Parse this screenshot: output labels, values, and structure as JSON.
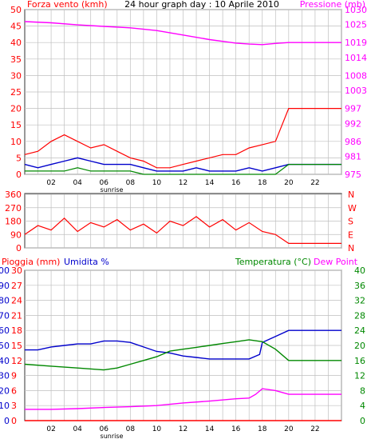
{
  "colors": {
    "wind_axis": "#ff0000",
    "pressure": "#ff00ff",
    "wind_gust": "#ff0000",
    "wind_avg": "#0000cc",
    "wind_min": "#008800",
    "humidity": "#0000cc",
    "rain": "#ff0000",
    "temperature": "#008800",
    "dewpoint": "#ff00ff",
    "grid": "#bfbfbf"
  },
  "chart_data": [
    {
      "type": "line",
      "title": "24 hour graph day : 10 Aprile 2010",
      "ylabel": "Forza vento (kmh)",
      "y2label": "Pressione (mb)",
      "x_ticks": [
        "02",
        "04",
        "06",
        "08",
        "10",
        "12",
        "14",
        "16",
        "18",
        "20",
        "22"
      ],
      "x_marker": "sunrise",
      "sunrise_hour": 6.5,
      "ylim": [
        0,
        50
      ],
      "y_ticks": [
        "0",
        "5",
        "10",
        "15",
        "20",
        "25",
        "30",
        "35",
        "40",
        "45",
        "50"
      ],
      "y2lim": [
        975,
        1030
      ],
      "y2_ticks": [
        "975",
        "981",
        "986",
        "992",
        "997",
        "1003",
        "1008",
        "1014",
        "1019",
        "1025",
        "1030"
      ],
      "grid": true,
      "series": [
        {
          "name": "Forza vento (kmh)",
          "values": {
            "gust": [
              [
                0,
                6
              ],
              [
                1,
                7
              ],
              [
                2,
                10
              ],
              [
                3,
                12
              ],
              [
                4,
                10
              ],
              [
                5,
                8
              ],
              [
                6,
                9
              ],
              [
                7,
                7
              ],
              [
                8,
                5
              ],
              [
                9,
                4
              ],
              [
                10,
                2
              ],
              [
                11,
                2
              ],
              [
                12,
                3
              ],
              [
                13,
                4
              ],
              [
                14,
                5
              ],
              [
                15,
                6
              ],
              [
                16,
                6
              ],
              [
                17,
                8
              ],
              [
                18,
                9
              ],
              [
                19,
                10
              ],
              [
                20,
                20
              ],
              [
                24,
                20
              ]
            ],
            "avg": [
              [
                0,
                3
              ],
              [
                1,
                2
              ],
              [
                2,
                3
              ],
              [
                3,
                4
              ],
              [
                4,
                5
              ],
              [
                5,
                4
              ],
              [
                6,
                3
              ],
              [
                7,
                3
              ],
              [
                8,
                3
              ],
              [
                9,
                2
              ],
              [
                10,
                1
              ],
              [
                11,
                1
              ],
              [
                12,
                1
              ],
              [
                13,
                2
              ],
              [
                14,
                1
              ],
              [
                15,
                1
              ],
              [
                16,
                1
              ],
              [
                17,
                2
              ],
              [
                18,
                1
              ],
              [
                19,
                2
              ],
              [
                20,
                3
              ],
              [
                24,
                3
              ]
            ],
            "min": [
              [
                0,
                1
              ],
              [
                1,
                1
              ],
              [
                2,
                1
              ],
              [
                3,
                1
              ],
              [
                4,
                2
              ],
              [
                5,
                1
              ],
              [
                6,
                1
              ],
              [
                7,
                1
              ],
              [
                8,
                1
              ],
              [
                9,
                0
              ],
              [
                10,
                0
              ],
              [
                11,
                0
              ],
              [
                12,
                0
              ],
              [
                13,
                0
              ],
              [
                14,
                0
              ],
              [
                15,
                0
              ],
              [
                16,
                0
              ],
              [
                17,
                0
              ],
              [
                18,
                0
              ],
              [
                19,
                0
              ],
              [
                20,
                3
              ],
              [
                24,
                3
              ]
            ]
          }
        },
        {
          "name": "Pressione (mb)",
          "values": [
            [
              0,
              1026.0
            ],
            [
              2,
              1025.6
            ],
            [
              4,
              1024.9
            ],
            [
              6,
              1024.4
            ],
            [
              8,
              1023.9
            ],
            [
              10,
              1023.0
            ],
            [
              12,
              1021.5
            ],
            [
              14,
              1020.0
            ],
            [
              16,
              1018.8
            ],
            [
              17,
              1018.5
            ],
            [
              18,
              1018.3
            ],
            [
              19,
              1018.7
            ],
            [
              20,
              1019.0
            ],
            [
              24,
              1019.0
            ]
          ]
        }
      ]
    },
    {
      "type": "line",
      "y_ticks": [
        "0",
        "90",
        "180",
        "270",
        "360"
      ],
      "ylim": [
        0,
        360
      ],
      "y2_labels": [
        "N",
        "W",
        "S",
        "E",
        "N"
      ],
      "x_ticks": [
        "02",
        "04",
        "06",
        "08",
        "10",
        "12",
        "14",
        "16",
        "18",
        "20",
        "22"
      ],
      "grid": true,
      "series": [
        {
          "values": [
            [
              0,
              90
            ],
            [
              1,
              150
            ],
            [
              2,
              120
            ],
            [
              3,
              200
            ],
            [
              4,
              110
            ],
            [
              5,
              170
            ],
            [
              6,
              140
            ],
            [
              7,
              190
            ],
            [
              8,
              120
            ],
            [
              9,
              160
            ],
            [
              10,
              100
            ],
            [
              11,
              180
            ],
            [
              12,
              150
            ],
            [
              13,
              210
            ],
            [
              14,
              140
            ],
            [
              15,
              190
            ],
            [
              16,
              120
            ],
            [
              17,
              170
            ],
            [
              18,
              110
            ],
            [
              19,
              90
            ],
            [
              20,
              30
            ],
            [
              24,
              30
            ]
          ]
        }
      ]
    },
    {
      "type": "line",
      "legend": [
        "Pioggia (mm)",
        "Umidita %",
        "Temperatura (°C)",
        "Dew Point"
      ],
      "x_ticks": [
        "02",
        "04",
        "06",
        "08",
        "10",
        "12",
        "14",
        "16",
        "18",
        "20",
        "22"
      ],
      "x_marker": "sunrise",
      "sunrise_hour": 6.5,
      "y_rain_ticks": [
        "0",
        "3",
        "6",
        "9",
        "12",
        "15",
        "18",
        "21",
        "24",
        "27",
        "30"
      ],
      "y_hum_ticks": [
        "0",
        "10",
        "20",
        "30",
        "40",
        "50",
        "60",
        "70",
        "80",
        "90",
        "100"
      ],
      "y_right_ticks": [
        "0",
        "4",
        "8",
        "12",
        "16",
        "20",
        "24",
        "28",
        "32",
        "36",
        "40"
      ],
      "y_rain_lim": [
        0,
        30
      ],
      "y_hum_lim": [
        0,
        100
      ],
      "y_temp_lim": [
        0,
        40
      ],
      "grid": true,
      "series": [
        {
          "name": "Pioggia (mm)",
          "values": [
            [
              0,
              0
            ],
            [
              24,
              0
            ]
          ]
        },
        {
          "name": "Umidita %",
          "values": [
            [
              0,
              47
            ],
            [
              1,
              47
            ],
            [
              2,
              49
            ],
            [
              3,
              50
            ],
            [
              4,
              51
            ],
            [
              5,
              51
            ],
            [
              6,
              53
            ],
            [
              7,
              53
            ],
            [
              8,
              52
            ],
            [
              9,
              49
            ],
            [
              10,
              46
            ],
            [
              11,
              45
            ],
            [
              12,
              43
            ],
            [
              13,
              42
            ],
            [
              14,
              41
            ],
            [
              15,
              41
            ],
            [
              16,
              41
            ],
            [
              17,
              41
            ],
            [
              17.8,
              44
            ],
            [
              18,
              52
            ],
            [
              19,
              56
            ],
            [
              20,
              60
            ],
            [
              24,
              60
            ]
          ]
        },
        {
          "name": "Temperatura (°C)",
          "values": [
            [
              0,
              15.0
            ],
            [
              2,
              14.5
            ],
            [
              4,
              14.0
            ],
            [
              6,
              13.5
            ],
            [
              7,
              14.0
            ],
            [
              8,
              15.0
            ],
            [
              9,
              16.0
            ],
            [
              10,
              17.0
            ],
            [
              11,
              18.5
            ],
            [
              12,
              19.0
            ],
            [
              13,
              19.5
            ],
            [
              14,
              20.0
            ],
            [
              15,
              20.5
            ],
            [
              16,
              21.0
            ],
            [
              17,
              21.5
            ],
            [
              18,
              21.0
            ],
            [
              19,
              19.0
            ],
            [
              20,
              16.0
            ],
            [
              24,
              16.0
            ]
          ]
        },
        {
          "name": "Dew Point",
          "values": [
            [
              0,
              3.0
            ],
            [
              2,
              3.0
            ],
            [
              4,
              3.2
            ],
            [
              6,
              3.5
            ],
            [
              8,
              3.7
            ],
            [
              10,
              4.0
            ],
            [
              12,
              4.7
            ],
            [
              14,
              5.2
            ],
            [
              16,
              5.8
            ],
            [
              17,
              6.0
            ],
            [
              17.5,
              7.0
            ],
            [
              18,
              8.5
            ],
            [
              19,
              8.0
            ],
            [
              20,
              7.0
            ],
            [
              24,
              7.0
            ]
          ]
        }
      ]
    }
  ]
}
